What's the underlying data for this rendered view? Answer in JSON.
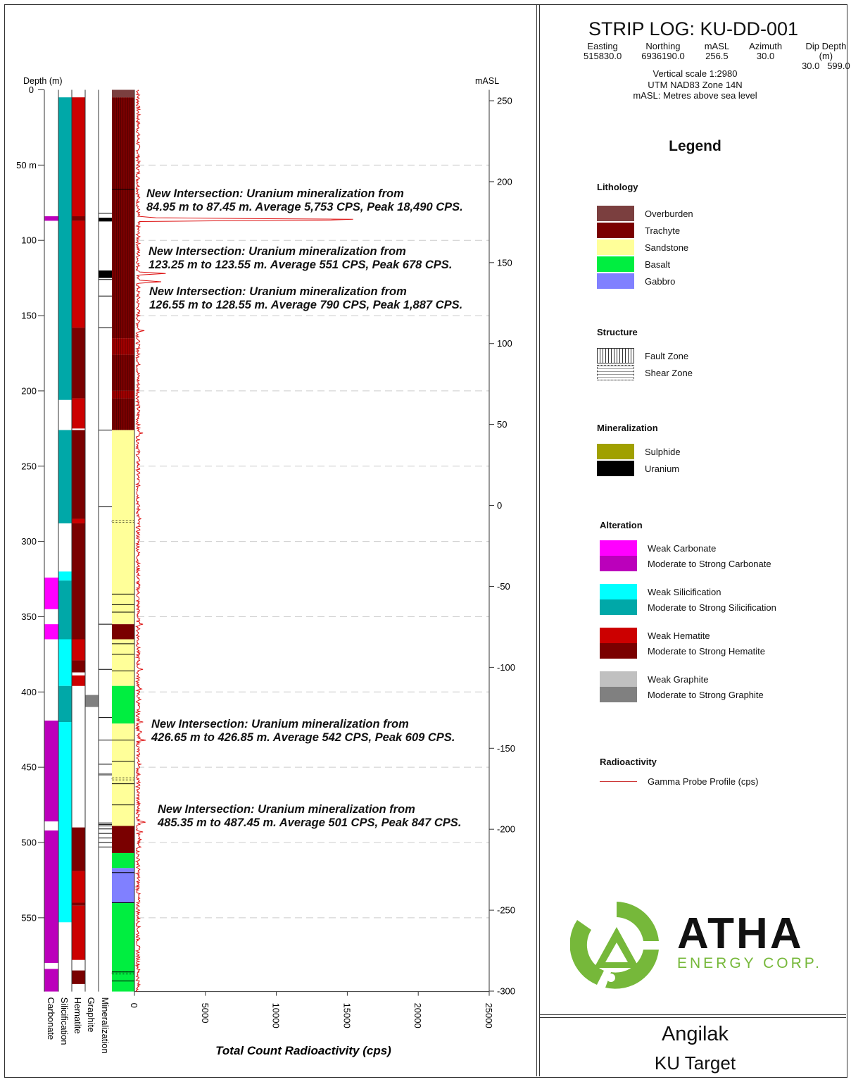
{
  "header": {
    "title": "STRIP LOG: KU-DD-001",
    "columns": [
      {
        "label": "Easting",
        "value": "515830.0"
      },
      {
        "label": "Northing",
        "value": "6936190.0"
      },
      {
        "label": "mASL",
        "value": "256.5"
      },
      {
        "label": "Azimuth",
        "value": "30.0"
      },
      {
        "label": "Dip Depth (m)",
        "value": "30.0   599.0"
      }
    ],
    "notes": [
      "Vertical scale 1:2980",
      "UTM NAD83 Zone 14N",
      "mASL: Metres above sea level"
    ]
  },
  "legend": {
    "title": "Legend",
    "groups": [
      {
        "heading": "Lithology",
        "items": [
          {
            "label": "Overburden",
            "color": "#7b3f3f"
          },
          {
            "label": "Trachyte",
            "color": "#7a0000"
          },
          {
            "label": "Sandstone",
            "color": "#ffff99"
          },
          {
            "label": "Basalt",
            "color": "#00ee40"
          },
          {
            "label": "Gabbro",
            "color": "#8080ff"
          }
        ]
      },
      {
        "heading": "Structure",
        "items": [
          {
            "label": "Fault Zone",
            "pattern": "vertical-hatch"
          },
          {
            "label": "Shear Zone",
            "pattern": "dotted-wavy"
          }
        ]
      },
      {
        "heading": "Mineralization",
        "items": [
          {
            "label": "Sulphide",
            "color": "#a0a000"
          },
          {
            "label": "Uranium",
            "color": "#000000"
          }
        ]
      },
      {
        "heading": "Alteration",
        "items": [
          {
            "label": "Weak Carbonate",
            "color": "#ff00ff"
          },
          {
            "label": "Moderate to Strong Carbonate",
            "color": "#bb00bb"
          },
          {
            "label": "Weak Silicification",
            "color": "#00ffff"
          },
          {
            "label": "Moderate to Strong Silicification",
            "color": "#00a8a8"
          },
          {
            "label": "Weak Hematite",
            "color": "#cc0000"
          },
          {
            "label": "Moderate to Strong Hematite",
            "color": "#7a0000"
          },
          {
            "label": "Weak Graphite",
            "color": "#c0c0c0"
          },
          {
            "label": "Moderate to Strong Graphite",
            "color": "#808080"
          }
        ]
      },
      {
        "heading": "Radioactivity",
        "items": [
          {
            "label": "Gamma Probe Profile (cps)",
            "pattern": "line",
            "color": "#cc3333"
          }
        ]
      }
    ]
  },
  "logo": {
    "name": "ATHA",
    "sub": "ENERGY CORP.",
    "color": "#76b83a"
  },
  "footer": {
    "project": "Angilak",
    "target": "KU Target"
  },
  "chart_data": {
    "type": "strip-log",
    "depth_axis": {
      "label": "Depth (m)",
      "range": [
        0,
        599
      ],
      "ticks": [
        {
          "v": 0,
          "t": "0"
        },
        {
          "v": 50,
          "t": "50 m"
        },
        {
          "v": 100,
          "t": "100"
        },
        {
          "v": 150,
          "t": "150"
        },
        {
          "v": 200,
          "t": "200"
        },
        {
          "v": 250,
          "t": "250"
        },
        {
          "v": 300,
          "t": "300"
        },
        {
          "v": 350,
          "t": "350"
        },
        {
          "v": 400,
          "t": "400"
        },
        {
          "v": 450,
          "t": "450"
        },
        {
          "v": 500,
          "t": "500"
        },
        {
          "v": 550,
          "t": "550"
        }
      ]
    },
    "masl_axis": {
      "label": "mASL",
      "range": [
        256.5,
        -300
      ],
      "ticks": [
        250,
        200,
        150,
        100,
        50,
        0,
        -50,
        -100,
        -150,
        -200,
        -250,
        -300
      ]
    },
    "cps_axis": {
      "label": "Total Count Radioactivity (cps)",
      "range": [
        0,
        25000
      ],
      "ticks": [
        0,
        5000,
        10000,
        15000,
        20000,
        25000
      ]
    },
    "track_labels": [
      "Carbonate",
      "Silicification",
      "Hematite",
      "Graphite",
      "Mineralization"
    ],
    "tracks": {
      "carbonate": [
        [
          84,
          87,
          "#bb00bb"
        ],
        [
          324,
          345,
          "#ff00ff"
        ],
        [
          355,
          365,
          "#ff00ff"
        ],
        [
          419,
          486,
          "#bb00bb"
        ],
        [
          492,
          580,
          "#bb00bb"
        ],
        [
          584,
          599,
          "#bb00bb"
        ]
      ],
      "silicification": [
        [
          5,
          206,
          "#00a8a8"
        ],
        [
          226,
          288,
          "#00a8a8"
        ],
        [
          320,
          326,
          "#00ffff"
        ],
        [
          326,
          365,
          "#00a8a8"
        ],
        [
          365,
          396,
          "#00ffff"
        ],
        [
          396,
          420,
          "#00a8a8"
        ],
        [
          420,
          553,
          "#00ffff"
        ]
      ],
      "hematite": [
        [
          5,
          84,
          "#cc0000"
        ],
        [
          84,
          87,
          "#7a0000"
        ],
        [
          87,
          158,
          "#cc0000"
        ],
        [
          158,
          205,
          "#7a0000"
        ],
        [
          205,
          225,
          "#cc0000"
        ],
        [
          226,
          285,
          "#7a0000"
        ],
        [
          285,
          288,
          "#cc0000"
        ],
        [
          288,
          365,
          "#7a0000"
        ],
        [
          365,
          379,
          "#cc0000"
        ],
        [
          379,
          387,
          "#7a0000"
        ],
        [
          389,
          396,
          "#cc0000"
        ],
        [
          490,
          519,
          "#7a0000"
        ],
        [
          519,
          540,
          "#cc0000"
        ],
        [
          540,
          542,
          "#7a0000"
        ],
        [
          542,
          578,
          "#cc0000"
        ],
        [
          585,
          594,
          "#7a0000"
        ]
      ],
      "graphite": [
        [
          402,
          410,
          "#808080"
        ]
      ],
      "mineralization": [
        [
          84.95,
          87.45,
          "#000000"
        ],
        [
          120,
          125,
          "#000000"
        ],
        [
          454,
          455.5,
          "#808080"
        ]
      ],
      "mineralization_contacts": [
        82,
        126,
        137,
        158,
        226,
        277,
        355,
        385,
        417,
        432,
        448,
        487,
        488,
        489,
        491,
        494,
        497,
        500,
        503
      ],
      "lithology": [
        [
          0,
          5,
          "#7b3f3f"
        ],
        [
          5,
          165,
          "#7a0000"
        ],
        [
          165,
          176,
          "#a00000"
        ],
        [
          176,
          200,
          "#7a0000"
        ],
        [
          200,
          205,
          "#a00000"
        ],
        [
          205,
          226,
          "#7a0000"
        ],
        [
          226,
          355,
          "#ffff99"
        ],
        [
          355,
          365,
          "#7a0000"
        ],
        [
          365,
          396,
          "#ffff99"
        ],
        [
          396,
          421,
          "#00ee40"
        ],
        [
          421,
          489,
          "#ffff99"
        ],
        [
          489,
          507,
          "#7a0000"
        ],
        [
          507,
          517,
          "#00ee40"
        ],
        [
          517,
          540,
          "#8080ff"
        ],
        [
          540,
          599,
          "#00ee40"
        ]
      ],
      "lithology_contacts": [
        66,
        335,
        342,
        347,
        368,
        375,
        386,
        432,
        446,
        461,
        475,
        520,
        540,
        586,
        592
      ],
      "fault_zones": [
        [
          5,
          226
        ]
      ],
      "shear_zones": [
        [
          286,
          288
        ],
        [
          457,
          458
        ],
        [
          586,
          587
        ]
      ]
    },
    "gamma_peaks": [
      [
        86.2,
        18490
      ],
      [
        122,
        2200
      ],
      [
        127.5,
        1887
      ],
      [
        85,
        1500
      ],
      [
        160,
        700
      ],
      [
        228,
        600
      ],
      [
        285,
        450
      ],
      [
        355,
        600
      ],
      [
        385,
        600
      ],
      [
        398,
        500
      ],
      [
        405,
        450
      ],
      [
        420,
        609
      ],
      [
        426.7,
        609
      ],
      [
        432,
        800
      ],
      [
        448,
        450
      ],
      [
        486.4,
        847
      ],
      [
        493,
        600
      ],
      [
        498,
        500
      ],
      [
        503,
        450
      ]
    ],
    "gamma_background": 300,
    "annotations": [
      {
        "depth": 86,
        "lines": [
          "New Intersection: Uranium mineralization from",
          "84.95 m to 87.45 m. Average 5,753 CPS, Peak 18,490 CPS."
        ]
      },
      {
        "depth": 123,
        "lines": [
          "New Intersection: Uranium mineralization from",
          "123.25 m to 123.55 m. Average 551 CPS, Peak 678 CPS."
        ]
      },
      {
        "depth": 127,
        "lines": [
          "New Intersection: Uranium mineralization from",
          "126.55 m to 128.55 m. Average 790 CPS, Peak 1,887 CPS."
        ]
      },
      {
        "depth": 426,
        "lines": [
          "New Intersection: Uranium mineralization from",
          "426.65 m to 426.85 m. Average 542 CPS, Peak 609 CPS."
        ]
      },
      {
        "depth": 486,
        "lines": [
          "New Intersection: Uranium mineralization from",
          "485.35 m to 487.45 m. Average 501 CPS, Peak 847 CPS."
        ]
      }
    ]
  }
}
